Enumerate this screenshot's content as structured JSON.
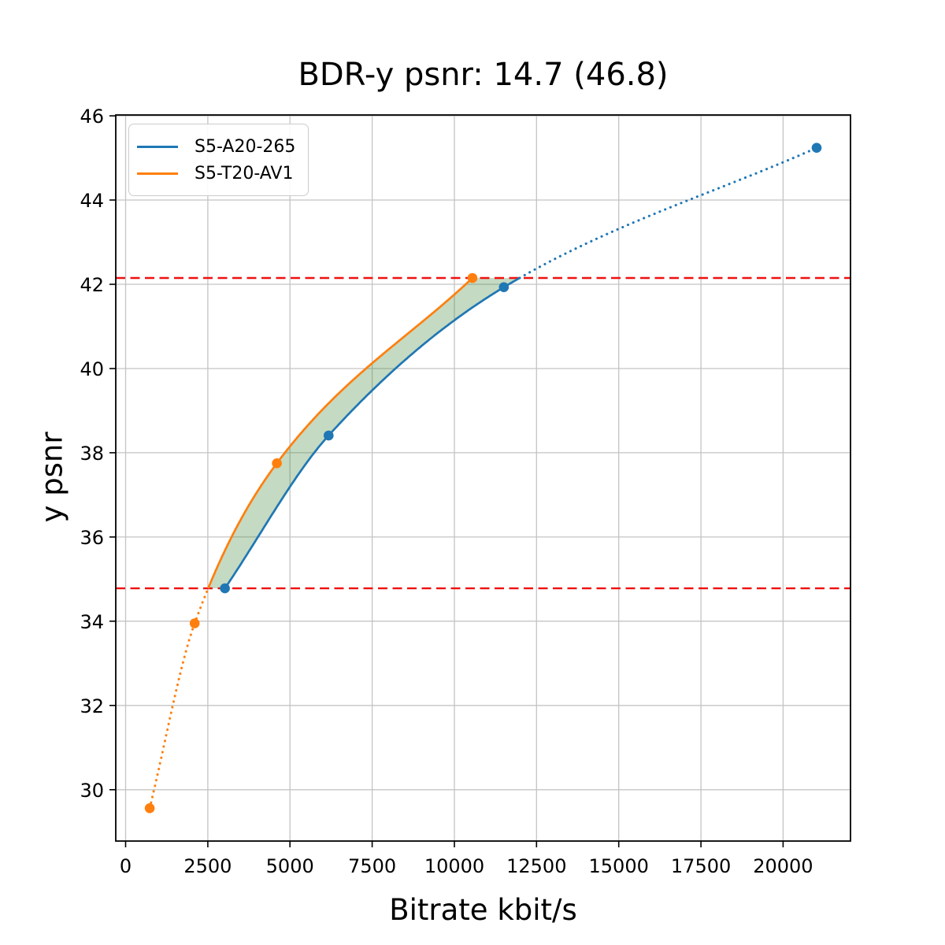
{
  "chart_data": {
    "type": "line",
    "title": "BDR-y psnr: 14.7 (46.8)",
    "xlabel": "Bitrate kbit/s",
    "ylabel": "y psnr",
    "xlim": [
      -300,
      22050
    ],
    "ylim": [
      28.78,
      46.02
    ],
    "xticks": [
      0,
      2500,
      5000,
      7500,
      10000,
      12500,
      15000,
      17500,
      20000
    ],
    "yticks": [
      30,
      32,
      34,
      36,
      38,
      40,
      42,
      44,
      46
    ],
    "grid": true,
    "grid_color": "#c4c4c4",
    "legend_position": "upper-left",
    "series": [
      {
        "name": "S5-A20-265",
        "color": "#1f77b4",
        "points": [
          [
            3020,
            34.78
          ],
          [
            6175,
            38.41
          ],
          [
            11505,
            41.93
          ],
          [
            21020,
            45.24
          ]
        ],
        "solid_between": [
          null,
          42.15
        ]
      },
      {
        "name": "S5-T20-AV1",
        "color": "#ff7f0e",
        "points": [
          [
            733,
            29.56
          ],
          [
            2100,
            33.95
          ],
          [
            4600,
            37.75
          ],
          [
            10550,
            42.15
          ]
        ],
        "solid_between": [
          34.78,
          null
        ]
      }
    ],
    "hlines": {
      "values": [
        42.15,
        34.78
      ],
      "color": "#ef1010",
      "style": "dashed"
    },
    "fill_between": {
      "color": "rgba(62,132,52,0.30)",
      "description": "BD shaded area between the two solid curve segments"
    }
  }
}
